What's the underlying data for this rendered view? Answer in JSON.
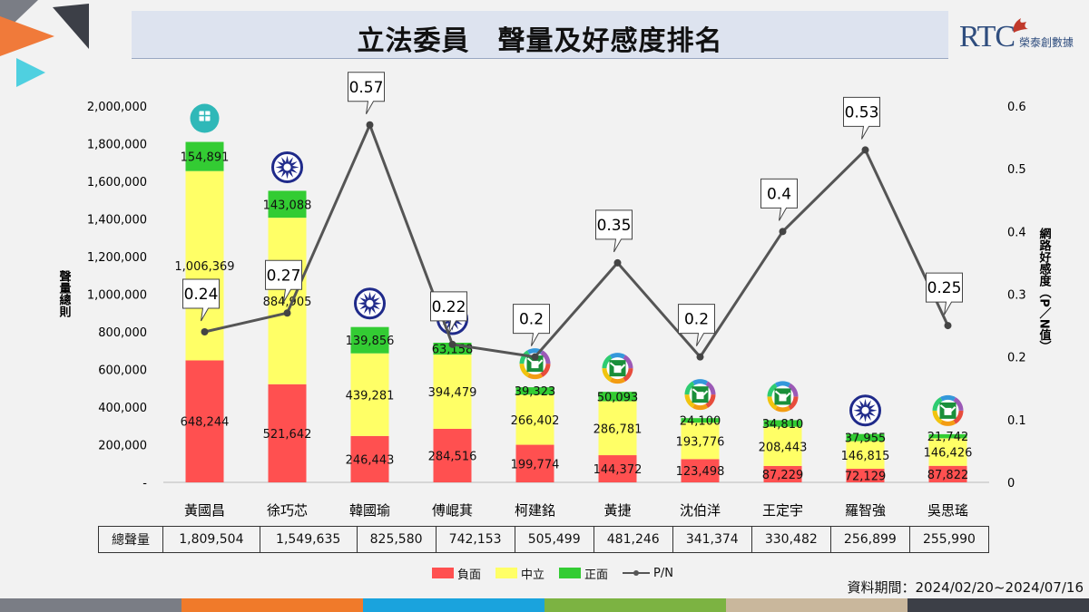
{
  "header": {
    "title": "立法委員　聲量及好感度排名",
    "logo_text": "RTC",
    "logo_name": "榮泰創數據"
  },
  "footer": {
    "period": "資料期間：2024/02/20~2024/07/16"
  },
  "colors": {
    "negative": "#ff5050",
    "neutral": "#ffff66",
    "positive": "#33cc33",
    "line": "#555555",
    "title_bg": "#dde3ef",
    "kmt_blue": "#1f2a8a",
    "dpp_green": "#1a8f3a",
    "tpp_teal": "#2fb8b8"
  },
  "chart_data": {
    "type": "bar",
    "stacked": true,
    "categories": [
      "黃國昌",
      "徐巧芯",
      "韓國瑜",
      "傅崐萁",
      "柯建銘",
      "黃捷",
      "沈伯洋",
      "王定宇",
      "羅智強",
      "吳思瑤"
    ],
    "series": [
      {
        "name": "負面",
        "color": "#ff5050",
        "labels": [
          "648,244",
          "521,642",
          "246,443",
          "284,516",
          "199,774",
          "144,372",
          "123,498",
          "87,229",
          "72,129",
          "87,822"
        ],
        "values": [
          648244,
          521642,
          246443,
          284516,
          199774,
          144372,
          123498,
          87229,
          72129,
          87822
        ]
      },
      {
        "name": "中立",
        "color": "#ffff66",
        "labels": [
          "1,006,369",
          "884,905",
          "439,281",
          "394,479",
          "266,402",
          "286,781",
          "193,776",
          "208,443",
          "146,815",
          "146,426"
        ],
        "values": [
          1006369,
          884905,
          439281,
          394479,
          266402,
          286781,
          193776,
          208443,
          146815,
          146426
        ]
      },
      {
        "name": "正面",
        "color": "#33cc33",
        "labels": [
          "154,891",
          "143,088",
          "139,856",
          "63,158",
          "39,323",
          "50,093",
          "24,100",
          "34,810",
          "37,955",
          "21,742"
        ],
        "values": [
          154891,
          143088,
          139856,
          63158,
          39323,
          50093,
          24100,
          34810,
          37955,
          21742
        ]
      }
    ],
    "line": {
      "name": "P/N",
      "labels": [
        "0.24",
        "0.27",
        "0.57",
        "0.22",
        "0.2",
        "0.35",
        "0.2",
        "0.4",
        "0.53",
        "0.25"
      ],
      "values": [
        0.24,
        0.27,
        0.57,
        0.22,
        0.2,
        0.35,
        0.2,
        0.4,
        0.53,
        0.25
      ],
      "axis": "right"
    },
    "party_icons": [
      "tpp-icon",
      "kmt-icon",
      "kmt-icon",
      "kmt-icon",
      "dpp-icon",
      "dpp-icon",
      "dpp-icon",
      "dpp-icon",
      "kmt-icon",
      "dpp-icon"
    ],
    "ylabel": "聲量總則",
    "y2label": "網路好感度（P／N值）",
    "ylim": [
      0,
      2000000
    ],
    "y2lim": [
      0,
      0.6
    ],
    "yticks": [
      "-",
      "200,000",
      "400,000",
      "600,000",
      "800,000",
      "1,000,000",
      "1,200,000",
      "1,400,000",
      "1,600,000",
      "1,800,000",
      "2,000,000"
    ],
    "y2ticks": [
      "0",
      "0.1",
      "0.2",
      "0.3",
      "0.4",
      "0.5",
      "0.6"
    ],
    "table": {
      "row_label": "總聲量",
      "values": [
        "1,809,504",
        "1,549,635",
        "825,580",
        "742,153",
        "505,499",
        "481,246",
        "341,374",
        "330,482",
        "256,899",
        "255,990"
      ]
    },
    "legend": [
      "負面",
      "中立",
      "正面",
      "P/N"
    ]
  }
}
